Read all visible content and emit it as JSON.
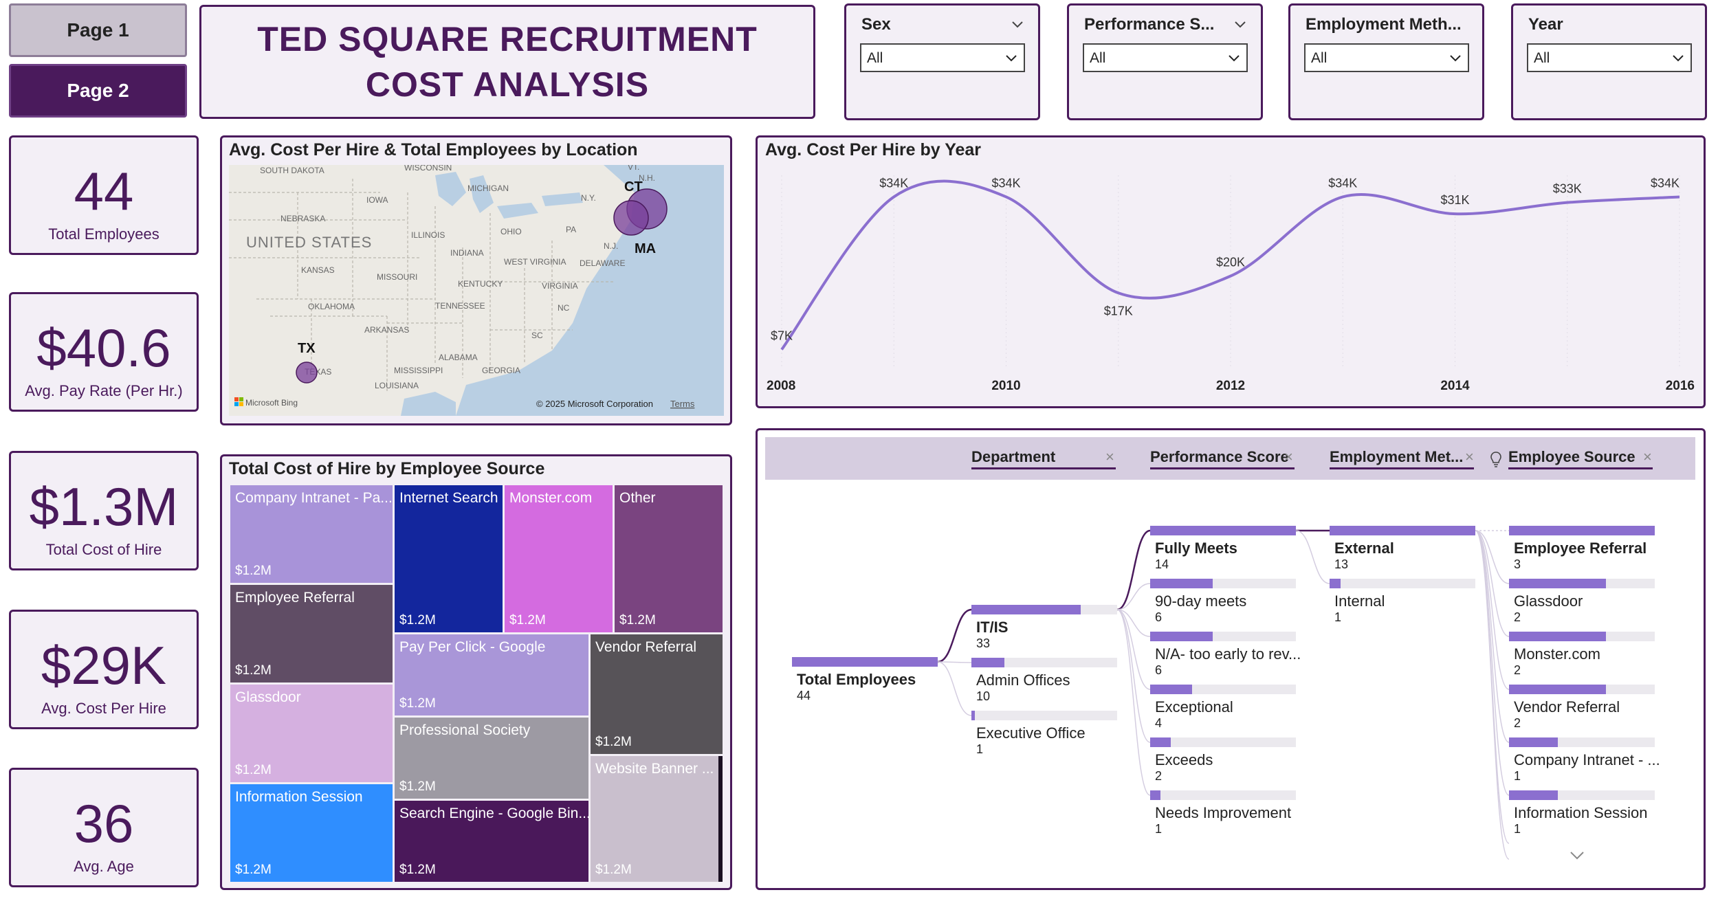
{
  "nav": {
    "page1": "Page 1",
    "page2": "Page 2"
  },
  "title": {
    "line1": "TED SQUARE RECRUITMENT",
    "line2": "COST ANALYSIS"
  },
  "slicers": [
    {
      "label": "Sex",
      "value": "All"
    },
    {
      "label": "Performance S...",
      "value": "All"
    },
    {
      "label": "Employment Meth...",
      "value": "All"
    },
    {
      "label": "Year",
      "value": "All"
    }
  ],
  "kpis": [
    {
      "value": "44",
      "label": "Total Employees"
    },
    {
      "value": "$40.6",
      "label": "Avg. Pay Rate (Per Hr.)"
    },
    {
      "value": "$1.3M",
      "label": "Total Cost of Hire"
    },
    {
      "value": "$29K",
      "label": "Avg. Cost Per Hire"
    },
    {
      "value": "36",
      "label": "Avg. Age"
    }
  ],
  "map": {
    "title": "Avg. Cost Per Hire & Total Employees by Location",
    "country_label": "UNITED STATES",
    "state_labels": [
      "SOUTH DAKOTA",
      "WISCONSIN",
      "MICHIGAN",
      "IOWA",
      "NEBRASKA",
      "ILLINOIS",
      "OHIO",
      "PA",
      "N.Y.",
      "KANSAS",
      "INDIANA",
      "WEST VIRGINIA",
      "DELAWARE",
      "N.J.",
      "MISSOURI",
      "KENTUCKY",
      "VIRGINIA",
      "OKLAHOMA",
      "TENNESSEE",
      "NC",
      "ARKANSAS",
      "SC",
      "ALABAMA",
      "MISSISSIPPI",
      "GEORGIA",
      "LOUISIANA",
      "TEXAS",
      "VT.",
      "N.H."
    ],
    "markers": [
      "CT",
      "MA",
      "TX"
    ],
    "credit": "© 2025 Microsoft Corporation",
    "terms": "Terms",
    "brand": "Microsoft Bing"
  },
  "line_chart": {
    "title": "Avg. Cost Per Hire by Year"
  },
  "chart_data": {
    "type": "line",
    "title": "Avg. Cost Per Hire by Year",
    "x": [
      2008,
      2009,
      2010,
      2011,
      2012,
      2013,
      2014,
      2015,
      2016
    ],
    "x_ticks": [
      "2008",
      "2010",
      "2012",
      "2014",
      "2016"
    ],
    "values": [
      7,
      34,
      34,
      17,
      20,
      34,
      31,
      33,
      34
    ],
    "data_labels": [
      "$7K",
      "$34K",
      "$34K",
      "$17K",
      "$20K",
      "$34K",
      "$31K",
      "$33K",
      "$34K"
    ],
    "color": "#8b6fcf",
    "grid": false
  },
  "treemap": {
    "title": "Total Cost of Hire by Employee Source",
    "tiles": [
      {
        "label": "Company Intranet - Pa...",
        "value": "$1.2M",
        "color": "#a893d9"
      },
      {
        "label": "Internet Search",
        "value": "$1.2M",
        "color": "#13269d"
      },
      {
        "label": "Monster.com",
        "value": "$1.2M",
        "color": "#d46be0"
      },
      {
        "label": "Other",
        "value": "$1.2M",
        "color": "#7a4480"
      },
      {
        "label": "Employee Referral",
        "value": "$1.2M",
        "color": "#604d65"
      },
      {
        "label": "Pay Per Click - Google",
        "value": "$1.2M",
        "color": "#a996d8"
      },
      {
        "label": "Vendor Referral",
        "value": "$1.2M",
        "color": "#575358"
      },
      {
        "label": "Glassdoor",
        "value": "$1.2M",
        "color": "#d5b0e0"
      },
      {
        "label": "Professional Society",
        "value": "$1.2M",
        "color": "#9d9aa3"
      },
      {
        "label": "Website Banner ...",
        "value": "$1.2M",
        "color": "#c9bfcd"
      },
      {
        "label": "Information Session",
        "value": "$1.2M",
        "color": "#2f8eff"
      },
      {
        "label": "Search Engine - Google Bin...",
        "value": "$1.2M",
        "color": "#4a185a"
      }
    ]
  },
  "decomp": {
    "headers": [
      "Department",
      "Performance Score",
      "Employment Met...",
      "Employee Source"
    ],
    "root": {
      "label": "Total Employees",
      "value": "44"
    },
    "department": [
      {
        "label": "IT/IS",
        "value": "33"
      },
      {
        "label": "Admin Offices",
        "value": "10"
      },
      {
        "label": "Executive Office",
        "value": "1"
      }
    ],
    "performance": [
      {
        "label": "Fully Meets",
        "value": "14"
      },
      {
        "label": "90-day meets",
        "value": "6"
      },
      {
        "label": "N/A- too early to rev...",
        "value": "6"
      },
      {
        "label": "Exceptional",
        "value": "4"
      },
      {
        "label": "Exceeds",
        "value": "2"
      },
      {
        "label": "Needs Improvement",
        "value": "1"
      }
    ],
    "employment": [
      {
        "label": "External",
        "value": "13"
      },
      {
        "label": "Internal",
        "value": "1"
      }
    ],
    "source": [
      {
        "label": "Employee Referral",
        "value": "3"
      },
      {
        "label": "Glassdoor",
        "value": "2"
      },
      {
        "label": "Monster.com",
        "value": "2"
      },
      {
        "label": "Vendor Referral",
        "value": "2"
      },
      {
        "label": "Company Intranet - ...",
        "value": "1"
      },
      {
        "label": "Information Session",
        "value": "1"
      }
    ]
  }
}
